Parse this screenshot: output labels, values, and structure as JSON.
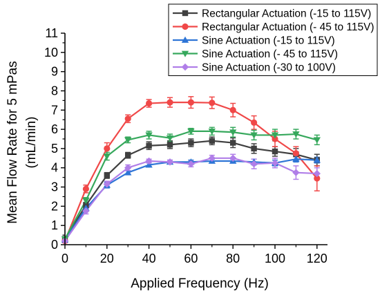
{
  "chart_data": {
    "type": "line",
    "xlabel": "Applied Frequency (Hz)",
    "ylabel_line1": "Mean Flow Rate for 5 mPas",
    "ylabel_line2": "(mL/min)",
    "xlim": [
      0,
      125
    ],
    "ylim": [
      0,
      11
    ],
    "xticks": [
      0,
      20,
      40,
      60,
      80,
      100,
      120
    ],
    "yticks": [
      0,
      1,
      2,
      3,
      4,
      5,
      6,
      7,
      8,
      9,
      10,
      11
    ],
    "grid": false,
    "legend_position": "top-right",
    "x": [
      0,
      10,
      20,
      30,
      40,
      50,
      60,
      70,
      80,
      90,
      100,
      110,
      120
    ],
    "series": [
      {
        "name": "Rectangular Actuation (-15 to 115V)",
        "color": "#404040",
        "marker": "square",
        "values": [
          0.3,
          2.05,
          3.6,
          4.65,
          5.15,
          5.2,
          5.3,
          5.4,
          5.3,
          5.0,
          4.85,
          4.7,
          4.4
        ],
        "errors": [
          0.1,
          0.15,
          0.15,
          0.15,
          0.2,
          0.2,
          0.2,
          0.2,
          0.25,
          0.25,
          0.25,
          0.3,
          0.3
        ]
      },
      {
        "name": "Rectangular Actuation (- 45 to 115V)",
        "color": "#f04848",
        "marker": "circle",
        "values": [
          0.2,
          2.9,
          5.0,
          6.55,
          7.35,
          7.4,
          7.4,
          7.38,
          7.0,
          6.35,
          5.5,
          4.75,
          3.45
        ],
        "errors": [
          0.1,
          0.2,
          0.3,
          0.2,
          0.2,
          0.25,
          0.3,
          0.3,
          0.35,
          0.35,
          0.4,
          0.35,
          0.65
        ]
      },
      {
        "name": "Sine Actuation (-15 to 115V)",
        "color": "#2e75d6",
        "marker": "triangle-up",
        "values": [
          0.25,
          1.9,
          3.1,
          3.75,
          4.15,
          4.3,
          4.3,
          4.35,
          4.35,
          4.3,
          4.25,
          4.45,
          4.4
        ],
        "errors": [
          0.1,
          0.15,
          0.15,
          0.1,
          0.1,
          0.1,
          0.1,
          0.1,
          0.1,
          0.15,
          0.15,
          0.15,
          0.15
        ]
      },
      {
        "name": "Sine Actuation (- 45 to 115V)",
        "color": "#36a85c",
        "marker": "triangle-down",
        "values": [
          0.3,
          2.3,
          4.6,
          5.45,
          5.7,
          5.55,
          5.9,
          5.9,
          5.85,
          5.7,
          5.7,
          5.75,
          5.45
        ],
        "errors": [
          0.1,
          0.15,
          0.2,
          0.15,
          0.2,
          0.2,
          0.15,
          0.2,
          0.25,
          0.25,
          0.3,
          0.25,
          0.25
        ]
      },
      {
        "name": "Sine Actuation (-30 to 100V)",
        "color": "#b07ee8",
        "marker": "diamond",
        "values": [
          0.2,
          1.75,
          3.15,
          4.0,
          4.35,
          4.3,
          4.2,
          4.5,
          4.5,
          4.2,
          4.25,
          3.75,
          3.7
        ],
        "errors": [
          0.1,
          0.15,
          0.15,
          0.15,
          0.1,
          0.1,
          0.15,
          0.15,
          0.2,
          0.25,
          0.25,
          0.35,
          0.3
        ]
      }
    ]
  }
}
